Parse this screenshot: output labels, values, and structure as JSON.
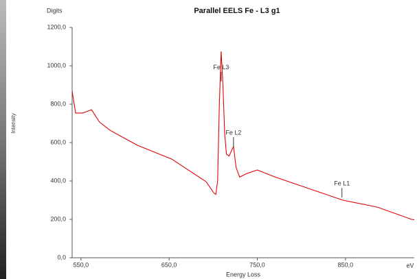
{
  "chart_data": {
    "type": "line",
    "title": "Parallel EELS Fe - L3 g1",
    "y_unit": "Digits",
    "ylabel": "Intensity",
    "xlabel": "Energy Loss",
    "x_unit": "eV",
    "x": [
      540,
      544,
      552,
      562,
      571,
      583,
      594,
      614,
      653,
      692,
      701,
      703,
      705,
      707,
      709,
      711,
      713,
      715,
      718,
      721,
      723,
      726,
      730,
      738,
      750,
      770,
      808,
      847,
      886,
      925,
      928
    ],
    "series": [
      {
        "name": "Parallel EELS Fe - L3 g1",
        "color": "#e00000",
        "values": [
          868,
          754,
          754,
          771,
          707,
          664,
          636,
          586,
          514,
          396,
          336,
          330,
          400,
          800,
          1075,
          900,
          650,
          540,
          530,
          560,
          580,
          470,
          420,
          439,
          457,
          421,
          361,
          300,
          264,
          200,
          198
        ]
      }
    ],
    "xlim": [
      540,
      928
    ],
    "ylim": [
      0,
      1200
    ],
    "xticks": [
      {
        "value": 550,
        "label": "550,0"
      },
      {
        "value": 650,
        "label": "650,0"
      },
      {
        "value": 750,
        "label": "750,0"
      },
      {
        "value": 850,
        "label": "850,0"
      }
    ],
    "yticks": [
      {
        "value": 0,
        "label": "0,0"
      },
      {
        "value": 200,
        "label": "200,0"
      },
      {
        "value": 400,
        "label": "400,0"
      },
      {
        "value": 600,
        "label": "600,0"
      },
      {
        "value": 800,
        "label": "800,0"
      },
      {
        "value": 1000,
        "label": "1000,0"
      },
      {
        "value": 1200,
        "label": "1200,0"
      }
    ],
    "grid": false,
    "annotations": [
      {
        "text": "Fe L3",
        "x": 709,
        "y": 990
      },
      {
        "text": "Fe L2",
        "x": 723,
        "y": 650
      },
      {
        "text": "Fe L1",
        "x": 846,
        "y": 385
      }
    ]
  }
}
